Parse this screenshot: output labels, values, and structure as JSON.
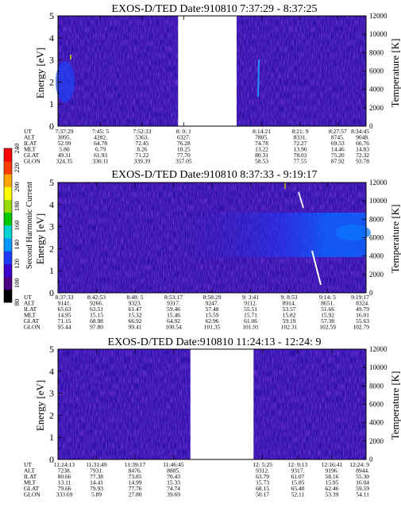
{
  "colorbar": {
    "label": "Second Harmonic Current",
    "ticks": [
      "80",
      "100",
      "120",
      "140",
      "160",
      "180",
      "200",
      "220",
      "240"
    ],
    "colors": [
      "#000000",
      "#4b0082",
      "#3a00cc",
      "#1e3cff",
      "#0096ff",
      "#00d2d2",
      "#00c800",
      "#96dc00",
      "#ffff00",
      "#ffa500",
      "#ff3c00",
      "#ff0000"
    ]
  },
  "chart_data": [
    {
      "type": "heatmap",
      "title": "EXOS-D/TED   Date:910810  7:37:29 - 8:37:25",
      "ylabel": "Energy [eV]",
      "y2label": "Temperature [K]",
      "ylim": [
        0,
        5
      ],
      "yticks": [
        "0",
        "1",
        "2",
        "3",
        "4",
        "5"
      ],
      "y2lim": [
        0,
        12000
      ],
      "y2ticks": [
        "0",
        "2000",
        "4000",
        "6000",
        "8000",
        "10000",
        "12000"
      ],
      "data_gaps": [
        [
          0.39,
          0.58
        ]
      ],
      "ephemeris_labels": [
        "UT",
        "ALT",
        "ILAT",
        "MLT",
        "GLAT",
        "GLON"
      ],
      "columns": [
        [
          "7:37:29",
          "3095.",
          "52.99",
          "5.80",
          "49.31",
          "324.35"
        ],
        [
          "7:45: 5",
          "4282.",
          "64.78",
          "6.79",
          "61.93",
          "330.11"
        ],
        [
          "7:52:33",
          "5363.",
          "72.45",
          "8.26",
          "71.22",
          "339.39"
        ],
        [
          "8: 0: 1",
          "6327.",
          "76.28",
          "10.25",
          "77.70",
          "357.05"
        ],
        [
          "8:14:21",
          "7805.",
          "74.78",
          "13.22",
          "80.31",
          "58.53"
        ],
        [
          "8:21: 9",
          "8331.",
          "72.27",
          "13.96",
          "78.03",
          "77.55"
        ],
        [
          "8:27:57",
          "8745.",
          "69.53",
          "14.46",
          "75.20",
          "87.92"
        ],
        [
          "8:34:45",
          "9048.",
          "66.76",
          "14.83",
          "72.32",
          "93.78"
        ]
      ],
      "column_positions": [
        0.0,
        0.138,
        0.273,
        0.408,
        0.661,
        0.786,
        0.908,
        1.0
      ]
    },
    {
      "type": "heatmap",
      "title": "EXOS-D/TED   Date:910810  8:37:33 - 9:19:17",
      "ylabel": "Energy [eV]",
      "y2label": "Temperature [K]",
      "ylim": [
        0,
        5
      ],
      "yticks": [
        "0",
        "1",
        "2",
        "3",
        "4",
        "5"
      ],
      "y2lim": [
        0,
        12000
      ],
      "y2ticks": [
        "0",
        "2000",
        "4000",
        "6000",
        "8000",
        "10000",
        "12000"
      ],
      "data_gaps": [],
      "ephemeris_labels": [
        "UT",
        "ALT",
        "ILAT",
        "MLT",
        "GLAT",
        "GLON"
      ],
      "columns": [
        [
          "8:37:33",
          "9141.",
          "65.63",
          "14.95",
          "71.15",
          "95.44"
        ],
        [
          "8:42:53",
          "9266.",
          "63.51",
          "15.15",
          "68.98",
          "97.80"
        ],
        [
          "8:48: 5",
          "9323.",
          "61.47",
          "15.32",
          "66.92",
          "99.41"
        ],
        [
          "8:53:17",
          "9317.",
          "59.46",
          "15.46",
          "64.92",
          "100.54"
        ],
        [
          "8:58:29",
          "9247.",
          "57.48",
          "15.59",
          "62.96",
          "101.35"
        ],
        [
          "9: 3:41",
          "9112.",
          "55.51",
          "15.71",
          "61.06",
          "101.91"
        ],
        [
          "9: 8:53",
          "8914.",
          "53.57",
          "15.82",
          "59.19",
          "102.31"
        ],
        [
          "9:14: 5",
          "8651.",
          "51.66",
          "15.92",
          "57.38",
          "102.59"
        ],
        [
          "9:19:17",
          "8324.",
          "49.79",
          "16.01",
          "55.63",
          "102.79"
        ]
      ],
      "column_positions": [
        0.0,
        0.125,
        0.25,
        0.375,
        0.5,
        0.625,
        0.75,
        0.875,
        1.0
      ]
    },
    {
      "type": "heatmap",
      "title": "EXOS-D/TED   Date:910810  11:24:13 - 12:24: 9",
      "ylabel": "Energy [eV]",
      "y2label": "Temperature [K]",
      "ylim": [
        0,
        5
      ],
      "yticks": [
        "0",
        "1",
        "2",
        "3",
        "4",
        "5"
      ],
      "y2lim": [
        0,
        12000
      ],
      "y2ticks": [
        "0",
        "2000",
        "4000",
        "6000",
        "8000",
        "10000",
        "12000"
      ],
      "data_gaps": [
        [
          0.43,
          0.635
        ]
      ],
      "ephemeris_labels": [
        "UT",
        "ALT",
        "ILAT",
        "MLT",
        "GLAT",
        "GLON"
      ],
      "columns": [
        [
          "11:24:13",
          "7238.",
          "80.66",
          "13.11",
          "79.66",
          "333.69"
        ],
        [
          "11:31:49",
          "7931.",
          "77.38",
          "14.41",
          "79.93",
          "5.89"
        ],
        [
          "11:39:17",
          "8476.",
          "73.85",
          "14.99",
          "77.76",
          "27.80"
        ],
        [
          "11:46:45",
          "8885.",
          "70.43",
          "15.33",
          "74.74",
          "39.69"
        ],
        [
          "12: 5:25",
          "9312.",
          "63.79",
          "15.73",
          "68.15",
          "50.17"
        ],
        [
          "12: 9:13",
          "9317.",
          "61.07",
          "15.85",
          "65.40",
          "52.11"
        ],
        [
          "12:16:41",
          "9196.",
          "58.16",
          "15.95",
          "62.46",
          "53.39"
        ],
        [
          "12:24: 9",
          "8944.",
          "55.30",
          "16.04",
          "59.59",
          "54.11"
        ]
      ],
      "column_positions": [
        0.0,
        0.125,
        0.25,
        0.375,
        0.664,
        0.778,
        0.889,
        1.0
      ]
    }
  ]
}
